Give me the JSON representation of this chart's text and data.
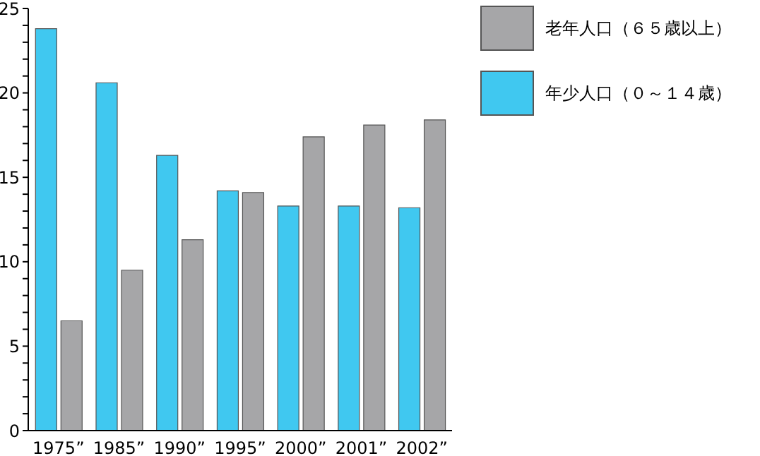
{
  "chart_data": {
    "type": "bar",
    "categories": [
      "1975”",
      "1985”",
      "1990”",
      "1995”",
      "2000”",
      "2001”",
      "2002”"
    ],
    "series": [
      {
        "name": "年少人口（０～１４歳）",
        "color": "#40c8f0",
        "values": [
          23.8,
          20.6,
          16.3,
          14.2,
          13.3,
          13.3,
          13.2
        ]
      },
      {
        "name": "老年人口（６５歳以上）",
        "color": "#a6a6a8",
        "values": [
          6.5,
          9.5,
          11.3,
          14.1,
          17.4,
          18.1,
          18.4
        ]
      }
    ],
    "ylim": [
      0,
      25
    ],
    "yticks": [
      0,
      {
        "value": 1,
        "label": null
      },
      {
        "value": 2,
        "label": null
      },
      {
        "value": 3,
        "label": null
      },
      {
        "value": 4,
        "label": null
      },
      5,
      {
        "value": 6,
        "label": null
      },
      {
        "value": 7,
        "label": null
      },
      {
        "value": 8,
        "label": null
      },
      {
        "value": 9,
        "label": null
      },
      10,
      {
        "value": 11,
        "label": null
      },
      {
        "value": 12,
        "label": null
      },
      {
        "value": 13,
        "label": null
      },
      {
        "value": 14,
        "label": null
      },
      15,
      {
        "value": 16,
        "label": null
      },
      {
        "value": 17,
        "label": null
      },
      {
        "value": 18,
        "label": null
      },
      {
        "value": 19,
        "label": null
      },
      20,
      {
        "value": 21,
        "label": null
      },
      {
        "value": 22,
        "label": null
      },
      {
        "value": 23,
        "label": null
      },
      {
        "value": 24,
        "label": null
      },
      25
    ],
    "grid": false,
    "legend": "top right"
  }
}
